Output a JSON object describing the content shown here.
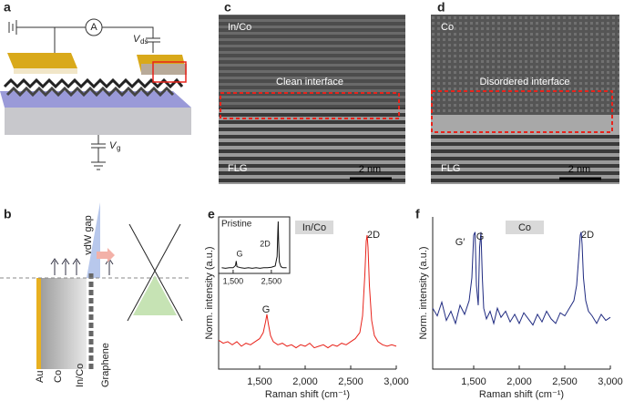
{
  "panel_labels": [
    "a",
    "b",
    "c",
    "d",
    "e",
    "f"
  ],
  "schematic_a": {
    "ammeter": "A",
    "v_ds": "V",
    "v_ds_sub": "ds",
    "v_g": "V",
    "v_g_sub": "g"
  },
  "schematic_b": {
    "gap": "vdW gap",
    "labels": [
      "Au",
      "Co",
      "In/Co",
      "Graphene"
    ]
  },
  "tem_c": {
    "material": "In/Co",
    "interface": "Clean interface",
    "substrate": "FLG",
    "scale": "2 nm"
  },
  "tem_d": {
    "material": "Co",
    "interface": "Disordered interface",
    "substrate": "FLG",
    "scale": "2 nm"
  },
  "chart_data": [
    {
      "type": "line",
      "xlabel": "Raman shift (cm⁻¹)",
      "ylabel": "Norm. intensity (a.u.)",
      "x": [
        1050,
        1100,
        1150,
        1200,
        1250,
        1300,
        1350,
        1400,
        1450,
        1500,
        1540,
        1565,
        1580,
        1595,
        1620,
        1650,
        1700,
        1750,
        1800,
        1850,
        1900,
        1950,
        2000,
        2050,
        2100,
        2150,
        2200,
        2250,
        2300,
        2350,
        2400,
        2450,
        2500,
        2550,
        2600,
        2630,
        2655,
        2670,
        2680,
        2690,
        2705,
        2730,
        2760,
        2800,
        2850,
        2900,
        2950,
        3000
      ],
      "series": [
        {
          "name": "In/Co",
          "color": "#e8231b",
          "values": [
            0.19,
            0.17,
            0.18,
            0.16,
            0.18,
            0.15,
            0.17,
            0.16,
            0.18,
            0.2,
            0.24,
            0.31,
            0.36,
            0.3,
            0.22,
            0.18,
            0.16,
            0.17,
            0.15,
            0.16,
            0.14,
            0.16,
            0.15,
            0.17,
            0.14,
            0.15,
            0.16,
            0.14,
            0.16,
            0.15,
            0.17,
            0.16,
            0.18,
            0.2,
            0.24,
            0.35,
            0.62,
            0.84,
            0.88,
            0.8,
            0.55,
            0.32,
            0.22,
            0.18,
            0.16,
            0.15,
            0.16,
            0.15
          ]
        }
      ],
      "annotations": [
        "G",
        "2D"
      ],
      "xlim": [
        1050,
        3000
      ],
      "ylim": [
        0,
        1
      ],
      "xticks": [
        {
          "value": 1500,
          "label": "1,500"
        },
        {
          "value": 2000,
          "label": "2,000"
        },
        {
          "value": 2500,
          "label": "2,500"
        },
        {
          "value": 3000,
          "label": "3,000"
        }
      ]
    },
    {
      "type": "line",
      "title": "Pristine",
      "x": [
        1200,
        1300,
        1400,
        1500,
        1560,
        1580,
        1600,
        1700,
        1800,
        1900,
        2000,
        2100,
        2200,
        2300,
        2400,
        2500,
        2600,
        2650,
        2670,
        2680,
        2690,
        2710,
        2750,
        2800,
        2900
      ],
      "series": [
        {
          "color": "#111111",
          "values": [
            0.1,
            0.09,
            0.1,
            0.1,
            0.14,
            0.22,
            0.12,
            0.1,
            0.09,
            0.1,
            0.09,
            0.1,
            0.09,
            0.1,
            0.1,
            0.11,
            0.13,
            0.3,
            0.75,
            0.92,
            0.6,
            0.2,
            0.12,
            0.1,
            0.1
          ]
        }
      ],
      "annotations": [
        "G",
        "2D"
      ],
      "xlim": [
        1120,
        2980
      ],
      "ylim": [
        0,
        1
      ],
      "xticks": [
        {
          "value": 1500,
          "label": "1,500"
        },
        {
          "value": 2500,
          "label": "2,500"
        }
      ]
    },
    {
      "type": "line",
      "xlabel": "Raman shift (cm⁻¹)",
      "ylabel": "Norm. intensity (a.u.)",
      "x": [
        1050,
        1100,
        1150,
        1200,
        1250,
        1300,
        1350,
        1400,
        1450,
        1480,
        1500,
        1515,
        1530,
        1550,
        1565,
        1580,
        1595,
        1610,
        1640,
        1680,
        1720,
        1760,
        1800,
        1850,
        1900,
        1950,
        2000,
        2050,
        2100,
        2150,
        2200,
        2250,
        2300,
        2350,
        2400,
        2450,
        2500,
        2550,
        2600,
        2630,
        2655,
        2670,
        2680,
        2690,
        2705,
        2730,
        2760,
        2800,
        2850,
        2900,
        2950,
        3000
      ],
      "series": [
        {
          "name": "Co",
          "color": "#1f2a80",
          "values": [
            0.4,
            0.35,
            0.44,
            0.32,
            0.38,
            0.3,
            0.42,
            0.36,
            0.45,
            0.6,
            0.88,
            0.9,
            0.55,
            0.42,
            0.8,
            0.9,
            0.6,
            0.4,
            0.33,
            0.38,
            0.3,
            0.4,
            0.34,
            0.38,
            0.31,
            0.36,
            0.3,
            0.37,
            0.33,
            0.29,
            0.36,
            0.31,
            0.38,
            0.33,
            0.3,
            0.37,
            0.35,
            0.4,
            0.45,
            0.55,
            0.75,
            0.88,
            0.9,
            0.82,
            0.6,
            0.45,
            0.38,
            0.35,
            0.3,
            0.36,
            0.32,
            0.34
          ]
        }
      ],
      "annotations": [
        "G′",
        "G",
        "2D"
      ],
      "xlim": [
        1050,
        3000
      ],
      "ylim": [
        0,
        1
      ],
      "xticks": [
        {
          "value": 1500,
          "label": "1,500"
        },
        {
          "value": 2000,
          "label": "2,000"
        },
        {
          "value": 2500,
          "label": "2,500"
        },
        {
          "value": 3000,
          "label": "3,000"
        }
      ]
    }
  ]
}
